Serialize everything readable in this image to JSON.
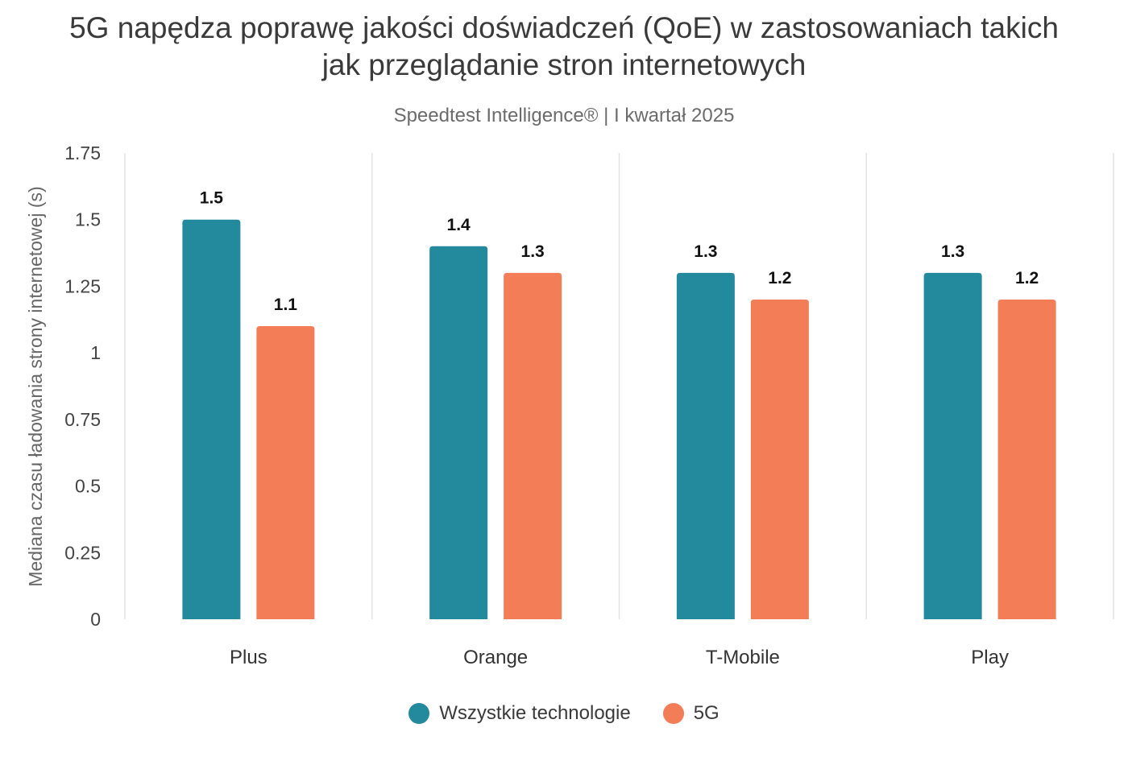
{
  "header": {
    "title_line1": "5G napędza poprawę jakości doświadczeń (QoE) w zastosowaniach takich",
    "title_line2": "jak przeglądanie stron internetowych",
    "subtitle": "Speedtest Intelligence® | I kwartał 2025"
  },
  "colors": {
    "all_tech": "#238a9e",
    "fiveg": "#f27d57",
    "grid": "#e3e3e3"
  },
  "chart_data": {
    "type": "bar",
    "ylabel": "Mediana czasu ładowania strony internetowej (s)",
    "ylim": [
      0,
      1.75
    ],
    "yticks": [
      0,
      0.25,
      0.5,
      0.75,
      1,
      1.25,
      1.5,
      1.75
    ],
    "ytick_labels": [
      "0",
      "0.25",
      "0.5",
      "0.75",
      "1",
      "1.25",
      "1.5",
      "1.75"
    ],
    "categories": [
      "Plus",
      "Orange",
      "T-Mobile",
      "Play"
    ],
    "series": [
      {
        "name": "Wszystkie technologie",
        "values": [
          1.5,
          1.4,
          1.3,
          1.3
        ],
        "labels": [
          "1.5",
          "1.4",
          "1.3",
          "1.3"
        ]
      },
      {
        "name": "5G",
        "values": [
          1.1,
          1.3,
          1.2,
          1.2
        ],
        "labels": [
          "1.1",
          "1.3",
          "1.2",
          "1.2"
        ]
      }
    ],
    "legend_position": "bottom"
  }
}
